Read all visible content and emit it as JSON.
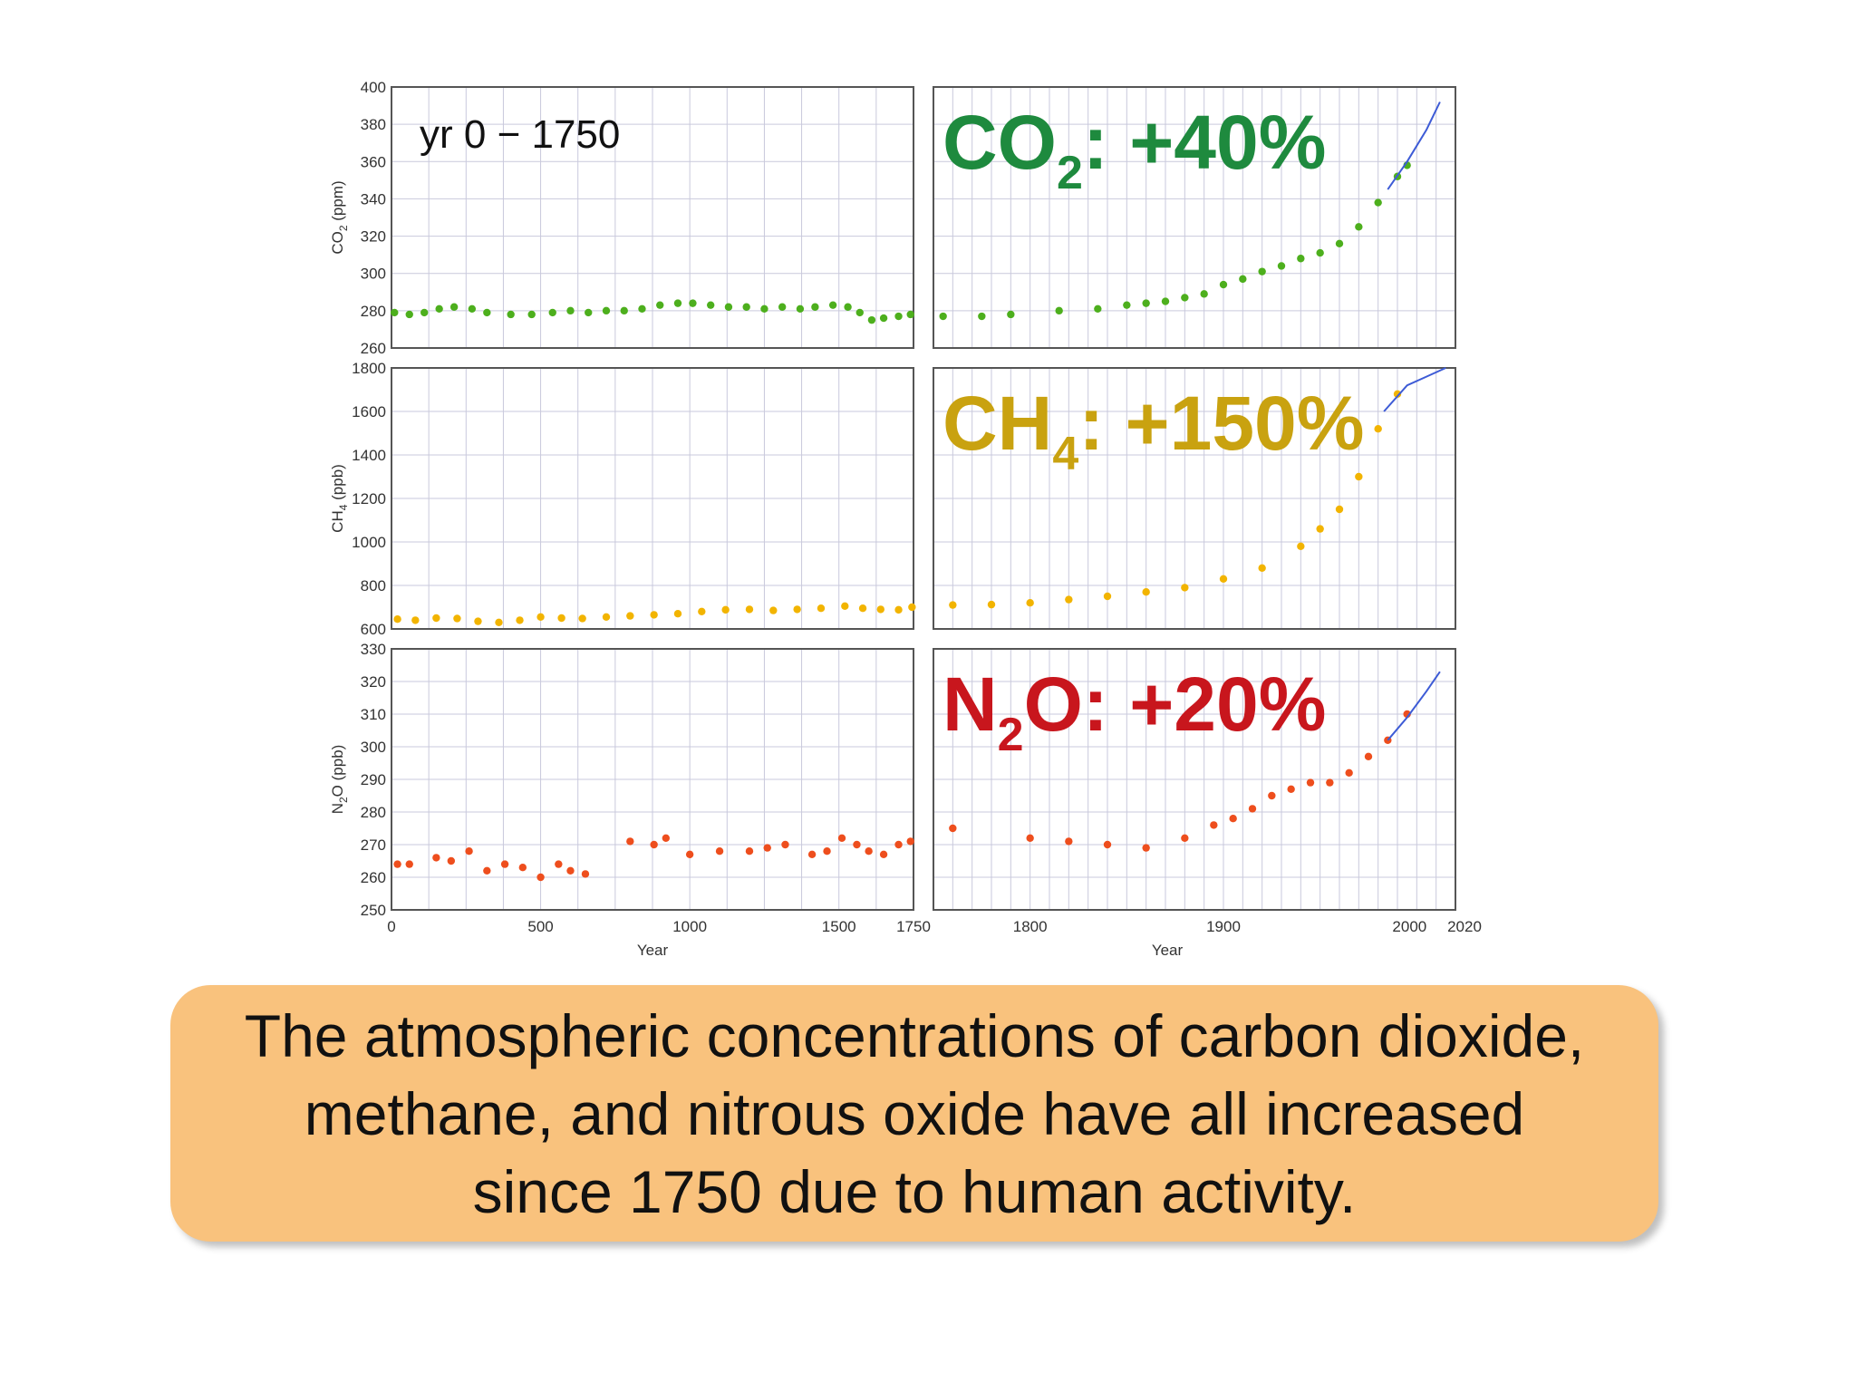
{
  "chart_data": {
    "type": "scatter",
    "x_axis": {
      "title": "Year",
      "left_range": [
        0,
        1750
      ],
      "left_ticks": [
        "0",
        "500",
        "1000",
        "1500",
        "1750"
      ],
      "right_range": [
        1750,
        2020
      ],
      "right_ticks": [
        "1800",
        "1900",
        "2000",
        "2020"
      ]
    },
    "era_label": "yr 0 − 1750",
    "panels": [
      {
        "gas": "CO2",
        "label_main": "CO",
        "label_sub": "2",
        "label_rest": ": +40%",
        "label_color": "#1e8a3e",
        "dot_color": "#4daf1d",
        "ylabel_main": "CO",
        "ylabel_sub": "2",
        "ylabel_rest": " (ppm)",
        "ylim": [
          260,
          400
        ],
        "yticks": [
          "260",
          "280",
          "300",
          "320",
          "340",
          "360",
          "380",
          "400"
        ],
        "points_early": [
          [
            10,
            279
          ],
          [
            60,
            278
          ],
          [
            110,
            279
          ],
          [
            160,
            281
          ],
          [
            210,
            282
          ],
          [
            270,
            281
          ],
          [
            320,
            279
          ],
          [
            400,
            278
          ],
          [
            470,
            278
          ],
          [
            540,
            279
          ],
          [
            600,
            280
          ],
          [
            660,
            279
          ],
          [
            720,
            280
          ],
          [
            780,
            280
          ],
          [
            840,
            281
          ],
          [
            900,
            283
          ],
          [
            960,
            284
          ],
          [
            1010,
            284
          ],
          [
            1070,
            283
          ],
          [
            1130,
            282
          ],
          [
            1190,
            282
          ],
          [
            1250,
            281
          ],
          [
            1310,
            282
          ],
          [
            1370,
            281
          ],
          [
            1420,
            282
          ],
          [
            1480,
            283
          ],
          [
            1530,
            282
          ],
          [
            1570,
            279
          ],
          [
            1610,
            275
          ],
          [
            1650,
            276
          ],
          [
            1700,
            277
          ],
          [
            1740,
            278
          ]
        ],
        "points_late": [
          [
            1755,
            277
          ],
          [
            1775,
            277
          ],
          [
            1790,
            278
          ],
          [
            1815,
            280
          ],
          [
            1835,
            281
          ],
          [
            1850,
            283
          ],
          [
            1860,
            284
          ],
          [
            1870,
            285
          ],
          [
            1880,
            287
          ],
          [
            1890,
            289
          ],
          [
            1900,
            294
          ],
          [
            1910,
            297
          ],
          [
            1920,
            301
          ],
          [
            1930,
            304
          ],
          [
            1940,
            308
          ],
          [
            1950,
            311
          ],
          [
            1960,
            316
          ],
          [
            1970,
            325
          ],
          [
            1980,
            338
          ],
          [
            1990,
            352
          ],
          [
            1995,
            358
          ]
        ],
        "line": [
          [
            1985,
            345
          ],
          [
            1995,
            360
          ],
          [
            2005,
            377
          ],
          [
            2012,
            392
          ]
        ]
      },
      {
        "gas": "CH4",
        "label_main": "CH",
        "label_sub": "4",
        "label_rest": ": +150%",
        "label_color": "#c9a210",
        "dot_color": "#f2b400",
        "ylabel_main": "CH",
        "ylabel_sub": "4",
        "ylabel_rest": " (ppb)",
        "ylim": [
          600,
          1800
        ],
        "yticks": [
          "600",
          "800",
          "1000",
          "1200",
          "1400",
          "1600",
          "1800"
        ],
        "points_early": [
          [
            20,
            645
          ],
          [
            80,
            640
          ],
          [
            150,
            650
          ],
          [
            220,
            648
          ],
          [
            290,
            635
          ],
          [
            360,
            630
          ],
          [
            430,
            640
          ],
          [
            500,
            655
          ],
          [
            570,
            650
          ],
          [
            640,
            648
          ],
          [
            720,
            655
          ],
          [
            800,
            660
          ],
          [
            880,
            665
          ],
          [
            960,
            670
          ],
          [
            1040,
            680
          ],
          [
            1120,
            688
          ],
          [
            1200,
            690
          ],
          [
            1280,
            685
          ],
          [
            1360,
            690
          ],
          [
            1440,
            695
          ],
          [
            1520,
            705
          ],
          [
            1580,
            695
          ],
          [
            1640,
            690
          ],
          [
            1700,
            688
          ],
          [
            1745,
            700
          ]
        ],
        "points_late": [
          [
            1760,
            710
          ],
          [
            1780,
            712
          ],
          [
            1800,
            720
          ],
          [
            1820,
            735
          ],
          [
            1840,
            750
          ],
          [
            1860,
            770
          ],
          [
            1880,
            790
          ],
          [
            1900,
            830
          ],
          [
            1920,
            880
          ],
          [
            1940,
            980
          ],
          [
            1950,
            1060
          ],
          [
            1960,
            1150
          ],
          [
            1970,
            1300
          ],
          [
            1980,
            1520
          ],
          [
            1990,
            1680
          ]
        ],
        "line": [
          [
            1983,
            1600
          ],
          [
            1995,
            1720
          ],
          [
            2005,
            1760
          ],
          [
            2015,
            1800
          ]
        ]
      },
      {
        "gas": "N2O",
        "label_main": "N",
        "label_sub": "2",
        "label_rest": "O: +20%",
        "label_color": "#c8161d",
        "dot_color": "#ee4e1d",
        "ylabel_main": "N",
        "ylabel_sub": "2",
        "ylabel_rest": "O (ppb)",
        "ylim": [
          250,
          330
        ],
        "yticks": [
          "250",
          "260",
          "270",
          "280",
          "290",
          "300",
          "310",
          "320",
          "330"
        ],
        "points_early": [
          [
            20,
            264
          ],
          [
            60,
            264
          ],
          [
            150,
            266
          ],
          [
            200,
            265
          ],
          [
            260,
            268
          ],
          [
            320,
            262
          ],
          [
            380,
            264
          ],
          [
            440,
            263
          ],
          [
            500,
            260
          ],
          [
            560,
            264
          ],
          [
            600,
            262
          ],
          [
            650,
            261
          ],
          [
            800,
            271
          ],
          [
            880,
            270
          ],
          [
            920,
            272
          ],
          [
            1000,
            267
          ],
          [
            1100,
            268
          ],
          [
            1200,
            268
          ],
          [
            1260,
            269
          ],
          [
            1320,
            270
          ],
          [
            1410,
            267
          ],
          [
            1460,
            268
          ],
          [
            1510,
            272
          ],
          [
            1560,
            270
          ],
          [
            1600,
            268
          ],
          [
            1650,
            267
          ],
          [
            1700,
            270
          ],
          [
            1740,
            271
          ]
        ],
        "points_late": [
          [
            1760,
            275
          ],
          [
            1800,
            272
          ],
          [
            1820,
            271
          ],
          [
            1840,
            270
          ],
          [
            1860,
            269
          ],
          [
            1880,
            272
          ],
          [
            1895,
            276
          ],
          [
            1905,
            278
          ],
          [
            1915,
            281
          ],
          [
            1925,
            285
          ],
          [
            1935,
            287
          ],
          [
            1945,
            289
          ],
          [
            1955,
            289
          ],
          [
            1965,
            292
          ],
          [
            1975,
            297
          ],
          [
            1985,
            302
          ],
          [
            1995,
            310
          ]
        ],
        "line": [
          [
            1985,
            302
          ],
          [
            1995,
            309
          ],
          [
            2005,
            317
          ],
          [
            2012,
            323
          ]
        ]
      }
    ]
  },
  "caption": "The atmospheric concentrations of carbon dioxide, methane, and nitrous oxide have all increased since 1750 due to human activity."
}
